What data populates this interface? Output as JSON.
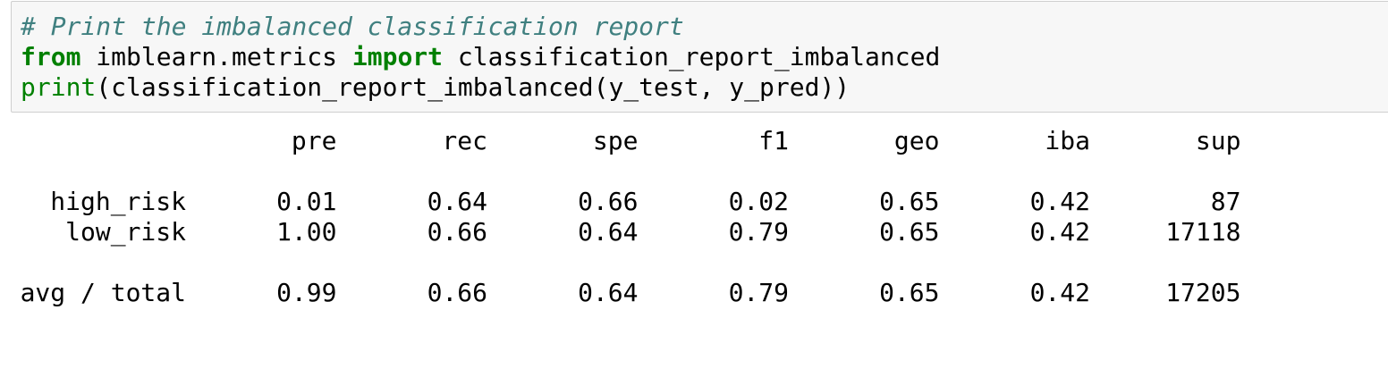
{
  "code": {
    "comment": "# Print the imbalanced classification report",
    "line2": {
      "kw_from": "from",
      "module": " imblearn.metrics ",
      "kw_import": "import",
      "name": " classification_report_imbalanced"
    },
    "line3": {
      "builtin_print": "print",
      "rest": "(classification_report_imbalanced(y_test, y_pred))"
    }
  },
  "report": {
    "headers": [
      "pre",
      "rec",
      "spe",
      "f1",
      "geo",
      "iba",
      "sup"
    ],
    "rows": [
      {
        "label": "high_risk",
        "values": [
          "0.01",
          "0.64",
          "0.66",
          "0.02",
          "0.65",
          "0.42",
          "87"
        ]
      },
      {
        "label": "low_risk",
        "values": [
          "1.00",
          "0.66",
          "0.64",
          "0.79",
          "0.65",
          "0.42",
          "17118"
        ]
      }
    ],
    "total": {
      "label": "avg / total",
      "values": [
        "0.99",
        "0.66",
        "0.64",
        "0.79",
        "0.65",
        "0.42",
        "17205"
      ]
    }
  }
}
